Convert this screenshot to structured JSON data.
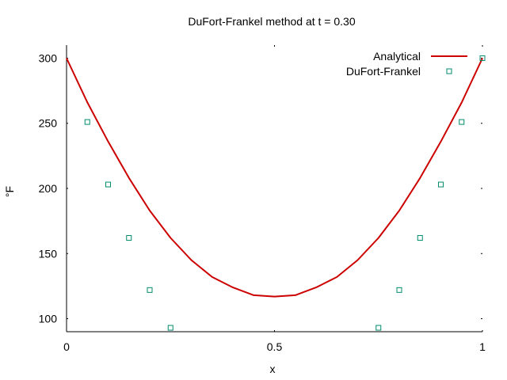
{
  "chart_data": {
    "type": "line",
    "title": "DuFort-Frankel method at t = 0.30",
    "xlabel": "x",
    "ylabel": "°F",
    "xlim": [
      0,
      1
    ],
    "ylim": [
      90,
      310
    ],
    "x_ticks": [
      0,
      0.5,
      1
    ],
    "x_tick_labels": [
      "0",
      "0.5",
      "1"
    ],
    "y_ticks": [
      100,
      150,
      200,
      250,
      300
    ],
    "y_tick_labels": [
      "100",
      "150",
      "200",
      "250",
      "300"
    ],
    "grid": false,
    "legend_position": "top-right",
    "series": [
      {
        "name": "Analytical",
        "style": "line",
        "color": "#cc0000",
        "x": [
          0,
          0.05,
          0.1,
          0.15,
          0.2,
          0.25,
          0.3,
          0.35,
          0.4,
          0.45,
          0.5,
          0.55,
          0.6,
          0.65,
          0.7,
          0.75,
          0.8,
          0.85,
          0.9,
          0.95,
          1
        ],
        "y": [
          300,
          266,
          236,
          208,
          183,
          162,
          145,
          132,
          124,
          118,
          117,
          118,
          124,
          132,
          145,
          162,
          183,
          208,
          236,
          266,
          300
        ]
      },
      {
        "name": "DuFort-Frankel",
        "style": "points",
        "color": "#008b6b",
        "x": [
          0.05,
          0.1,
          0.15,
          0.2,
          0.25,
          0.75,
          0.8,
          0.85,
          0.9,
          0.95,
          1
        ],
        "y": [
          251,
          203,
          162,
          122,
          93,
          93,
          122,
          162,
          203,
          251,
          300
        ]
      }
    ]
  }
}
